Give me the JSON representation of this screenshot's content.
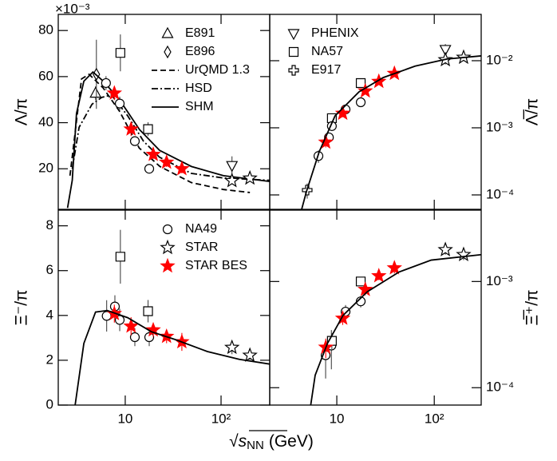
{
  "xlabel": {
    "root": "√",
    "symbol": "s",
    "subscript": "NN",
    "unit": "(GeV)"
  },
  "chart_data": [
    {
      "type": "scatter",
      "ylabel": "Λ/π",
      "yaxis_multiplier": "×10⁻³",
      "xscale": "log",
      "yscale": "linear",
      "xlim": [
        2,
        322
      ],
      "ylim": [
        2.4,
        87
      ],
      "xticks": [
        10,
        100
      ],
      "show_xtick_labels": false,
      "yticks": [
        20,
        40,
        60,
        80
      ],
      "yaxis_side": "left",
      "legend": "upper right",
      "series": [
        {
          "name": "E891",
          "marker": "triangle",
          "color": "#000000",
          "x": [
            4.9
          ],
          "values": [
            52.8
          ],
          "errors": [
            3
          ]
        },
        {
          "name": "E896",
          "marker": "diamond",
          "color": "#000000",
          "x": [
            5.0
          ],
          "values": [
            61
          ],
          "errors": [
            15
          ]
        },
        {
          "name": "UrQMD 1.3",
          "linestyle": "dashed",
          "color": "#000000",
          "x": [
            2.65,
            3.5,
            4.2,
            5.9,
            8.7,
            14,
            23,
            49,
            106,
            200
          ],
          "values": [
            17,
            59,
            61,
            55,
            45,
            29,
            21,
            14,
            11,
            9.7
          ]
        },
        {
          "name": "HSD",
          "linestyle": "dashdot",
          "color": "#000000",
          "x": [
            2.8,
            3.3,
            4.5,
            5.7,
            7.2,
            10.6,
            15.5,
            22.8,
            49,
            106,
            322
          ],
          "values": [
            20,
            38,
            48,
            51,
            52,
            43,
            32,
            25,
            18,
            16,
            15
          ]
        },
        {
          "name": "SHM",
          "linestyle": "solid",
          "color": "#000000",
          "x": [
            2.5,
            2.8,
            3.1,
            3.7,
            4.6,
            5.9,
            8.7,
            14.1,
            22.8,
            49,
            106,
            322
          ],
          "values": [
            3,
            15,
            44,
            58,
            62,
            58,
            50,
            37,
            28,
            21,
            17,
            14.5
          ]
        },
        {
          "marker": "circle",
          "color": "#000000",
          "x": [
            6.3,
            8.76,
            12.6,
            17.8
          ],
          "values": [
            57.2,
            48.3,
            32,
            20
          ],
          "errors": [
            3,
            3,
            2,
            2
          ]
        },
        {
          "marker": "square",
          "color": "#000000",
          "x": [
            8.9,
            17.3
          ],
          "values": [
            70.3,
            37.2
          ],
          "errors": [
            8,
            3
          ]
        },
        {
          "marker": "triangle_down",
          "color": "#000000",
          "x": [
            130
          ],
          "values": [
            21.4
          ],
          "errors": [
            4
          ]
        },
        {
          "marker": "star",
          "color": "#000000",
          "x": [
            130,
            200
          ],
          "values": [
            14.8,
            15.9
          ],
          "errors": [
            1.5,
            1
          ]
        },
        {
          "marker": "star",
          "filled": true,
          "color": "#ff0000",
          "x": [
            7.7,
            11.5,
            19.6,
            27,
            39
          ],
          "values": [
            52.8,
            37.2,
            26.2,
            22.8,
            20
          ],
          "errors": [
            3,
            3,
            2,
            2,
            2
          ]
        }
      ]
    },
    {
      "type": "scatter",
      "ylabel": "Λ̅/π",
      "xscale": "log",
      "yscale": "log",
      "xlim": [
        2.05,
        303
      ],
      "ylim": [
        6.1e-05,
        0.049
      ],
      "xticks": [
        10,
        100
      ],
      "show_xtick_labels": false,
      "yticks": [
        {
          "value": 0.0001,
          "label": "10⁻⁴"
        },
        {
          "value": 0.001,
          "label": "10⁻³"
        },
        {
          "value": 0.01,
          "label": "10⁻²"
        }
      ],
      "yaxis_side": "right",
      "legend": "upper left",
      "series": [
        {
          "name": "PHENIX",
          "marker": "triangle_down",
          "color": "#000000",
          "x": [
            130
          ],
          "values": [
            0.0147
          ],
          "errors": [
            0.003
          ]
        },
        {
          "name": "NA57",
          "marker": "square",
          "color": "#000000",
          "x": [
            8.9,
            17.6
          ],
          "values": [
            0.00139,
            0.00464
          ],
          "errors": [
            0.0002,
            0.0006
          ]
        },
        {
          "name": "E917",
          "marker": "cross",
          "color": "#000000",
          "x": [
            4.97
          ],
          "values": [
            0.000118
          ],
          "errors": [
            3e-05
          ]
        },
        {
          "marker": "circle",
          "color": "#000000",
          "x": [
            6.48,
            8.3,
            8.9,
            12.3,
            17.6
          ],
          "values": [
            0.00038,
            0.00072,
            0.00106,
            0.00188,
            0.0024
          ],
          "errors": [
            8e-05,
            0.0001,
            0.0001,
            0.0002,
            0.0003
          ]
        },
        {
          "marker": "star",
          "color": "#000000",
          "x": [
            130,
            200
          ],
          "values": [
            0.0103,
            0.0112
          ],
          "errors": [
            0.0015,
            0.001
          ]
        },
        {
          "marker": "star",
          "filled": true,
          "color": "#ff0000",
          "x": [
            7.7,
            11.5,
            19.6,
            27,
            39
          ],
          "values": [
            0.00061,
            0.00164,
            0.00353,
            0.0049,
            0.00645
          ],
          "errors": [
            0.0001,
            0.0002,
            0.0003,
            0.0004,
            0.0005
          ]
        },
        {
          "linestyle": "solid",
          "color": "#000000",
          "x": [
            4.36,
            4.88,
            6.6,
            9.6,
            16.9,
            29.9,
            63.6,
            135,
            303
          ],
          "values": [
            6.1e-05,
            0.000112,
            0.00044,
            0.00151,
            0.00343,
            0.0056,
            0.0083,
            0.0106,
            0.0118
          ]
        }
      ]
    },
    {
      "type": "scatter",
      "ylabel": "Ξ⁻/π",
      "xscale": "log",
      "yscale": "linear",
      "xlim": [
        2,
        322
      ],
      "ylim": [
        0,
        8.7
      ],
      "xticks": [
        10,
        {
          "value": 100,
          "label": "10²"
        }
      ],
      "show_xtick_labels": true,
      "yticks": [
        0,
        2,
        4,
        6,
        8
      ],
      "yaxis_side": "left",
      "legend": "upper right",
      "series": [
        {
          "name": "NA49",
          "marker": "circle",
          "color": "#000000",
          "x": [
            6.4,
            7.8,
            8.76,
            12.6,
            17.8
          ],
          "values": [
            3.98,
            4.4,
            3.8,
            3.03,
            3.03
          ],
          "errors": [
            0.7,
            0.5,
            0.5,
            0.4,
            0.4
          ]
        },
        {
          "name": "STAR",
          "marker": "star",
          "color": "#000000",
          "x": [
            130,
            200
          ],
          "values": [
            2.57,
            2.22
          ],
          "errors": [
            0.3,
            0.2
          ]
        },
        {
          "name": "STAR BES",
          "marker": "star",
          "filled": true,
          "color": "#ff0000",
          "x": [
            7.7,
            11.5,
            19.6,
            27,
            39
          ],
          "values": [
            4.08,
            3.52,
            3.35,
            3.06,
            2.82
          ],
          "errors": [
            0.4,
            0.4,
            0.3,
            0.3,
            0.4
          ]
        },
        {
          "marker": "square",
          "color": "#000000",
          "x": [
            8.9,
            17.3
          ],
          "values": [
            6.62,
            4.19
          ],
          "errors": [
            1.2,
            0.5
          ]
        },
        {
          "linestyle": "solid",
          "color": "#000000",
          "x": [
            3.0,
            3.7,
            4.9,
            6.5,
            10.6,
            18.8,
            33.5,
            72,
            155,
            322
          ],
          "values": [
            0,
            2.75,
            4.15,
            4.22,
            3.9,
            3.27,
            2.92,
            2.39,
            2.04,
            1.83
          ]
        }
      ]
    },
    {
      "type": "scatter",
      "ylabel": "Ξ̅⁺/π",
      "xscale": "log",
      "yscale": "log",
      "xlim": [
        2.05,
        303
      ],
      "ylim": [
        6.86e-05,
        0.0047
      ],
      "xticks": [
        10,
        {
          "value": 100,
          "label": "10²"
        }
      ],
      "show_xtick_labels": true,
      "yticks": [
        {
          "value": 0.0001,
          "label": "10⁻⁴"
        },
        {
          "value": 0.001,
          "label": "10⁻³"
        }
      ],
      "yaxis_side": "right",
      "series": [
        {
          "marker": "circle",
          "color": "#000000",
          "x": [
            7.68,
            8.8,
            12.3,
            17.6
          ],
          "values": [
            0.000202,
            0.000249,
            0.00052,
            0.00065
          ],
          "errors": [
            8e-05,
            0.0001,
            8e-05,
            8e-05
          ]
        },
        {
          "marker": "square",
          "color": "#000000",
          "x": [
            8.9,
            17.6
          ],
          "values": [
            0.000276,
            0.001
          ],
          "errors": [
            5e-05,
            8e-05
          ]
        },
        {
          "marker": "star",
          "color": "#000000",
          "x": [
            130,
            200
          ],
          "values": [
            0.00199,
            0.00179
          ],
          "errors": [
            0.0002,
            0.0002
          ]
        },
        {
          "marker": "star",
          "filled": true,
          "color": "#ff0000",
          "x": [
            7.7,
            11.5,
            19.6,
            27,
            39
          ],
          "values": [
            0.00024,
            0.00045,
            0.00084,
            0.00113,
            0.00134
          ],
          "errors": [
            5e-05,
            6e-05,
            0.0001,
            0.0001,
            0.00015
          ]
        },
        {
          "linestyle": "solid",
          "color": "#000000",
          "x": [
            5.4,
            6.0,
            8.0,
            11.6,
            20.5,
            43.6,
            93,
            303
          ],
          "values": [
            6.86e-05,
            0.000131,
            0.00026,
            0.00048,
            0.0008,
            0.00123,
            0.00159,
            0.00179
          ]
        }
      ]
    }
  ]
}
